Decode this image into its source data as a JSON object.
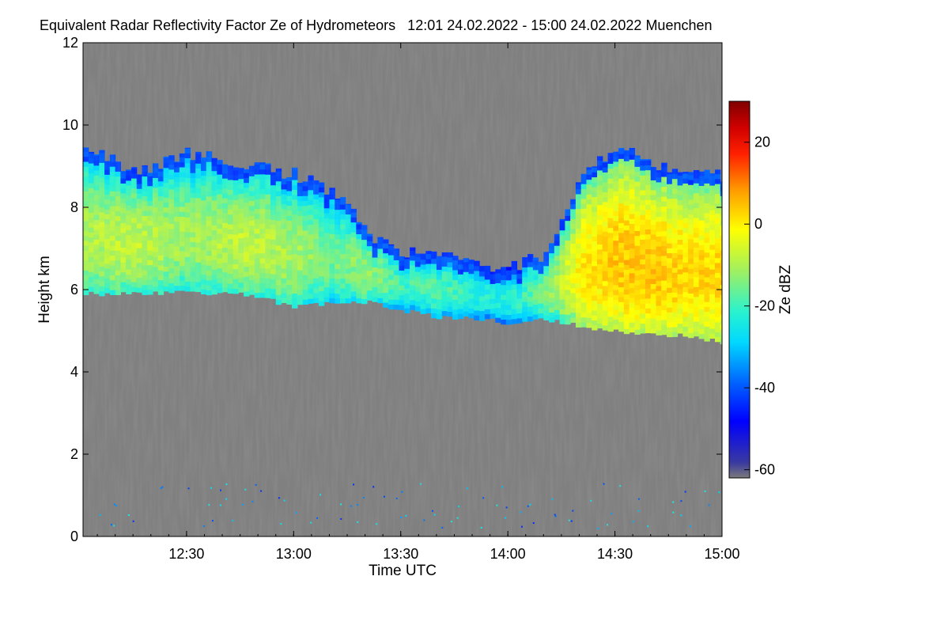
{
  "chart_data": {
    "type": "heatmap",
    "title": "Equivalent Radar Reflectivity Factor Ze of Hydrometeors   12:01 24.02.2022 - 15:00 24.02.2022 Muenchen",
    "xlabel": "Time UTC",
    "ylabel": "Height km",
    "x_range_minutes_utc": [
      721,
      900
    ],
    "x_ticks": [
      {
        "minute": 750,
        "label": "12:30"
      },
      {
        "minute": 780,
        "label": "13:00"
      },
      {
        "minute": 810,
        "label": "13:30"
      },
      {
        "minute": 840,
        "label": "14:00"
      },
      {
        "minute": 870,
        "label": "14:30"
      },
      {
        "minute": 900,
        "label": "15:00"
      }
    ],
    "ylim": [
      0,
      12
    ],
    "y_ticks": [
      {
        "value": 0,
        "label": "0"
      },
      {
        "value": 2,
        "label": "2"
      },
      {
        "value": 4,
        "label": "4"
      },
      {
        "value": 6,
        "label": "6"
      },
      {
        "value": 8,
        "label": "8"
      },
      {
        "value": 10,
        "label": "10"
      },
      {
        "value": 12,
        "label": "12"
      }
    ],
    "colorbar": {
      "label": "Ze dBZ",
      "range": [
        -62,
        30
      ],
      "ticks": [
        {
          "value": 20,
          "label": "20"
        },
        {
          "value": 0,
          "label": "0"
        },
        {
          "value": -20,
          "label": "-20"
        },
        {
          "value": -40,
          "label": "-40"
        },
        {
          "value": -60,
          "label": "-60"
        }
      ]
    },
    "background_color": "#808080",
    "cloud_layer": {
      "description_times": [
        721,
        735,
        750,
        765,
        780,
        790,
        800,
        810,
        820,
        830,
        840,
        850,
        860,
        870,
        880,
        890,
        900
      ],
      "top_km": [
        9.4,
        8.9,
        9.3,
        9.1,
        8.8,
        8.4,
        7.4,
        6.9,
        6.8,
        6.7,
        6.5,
        6.9,
        8.8,
        9.4,
        9.1,
        8.9,
        8.8
      ],
      "base_km": [
        5.9,
        5.9,
        5.95,
        5.9,
        5.6,
        5.7,
        5.7,
        5.5,
        5.35,
        5.3,
        5.2,
        5.3,
        5.1,
        5.0,
        4.9,
        4.9,
        4.7
      ],
      "core_dbz": [
        -14,
        -12,
        -16,
        -12,
        -15,
        -20,
        -16,
        -24,
        -22,
        -26,
        -28,
        -18,
        -4,
        0,
        0,
        -2,
        -2
      ]
    }
  }
}
